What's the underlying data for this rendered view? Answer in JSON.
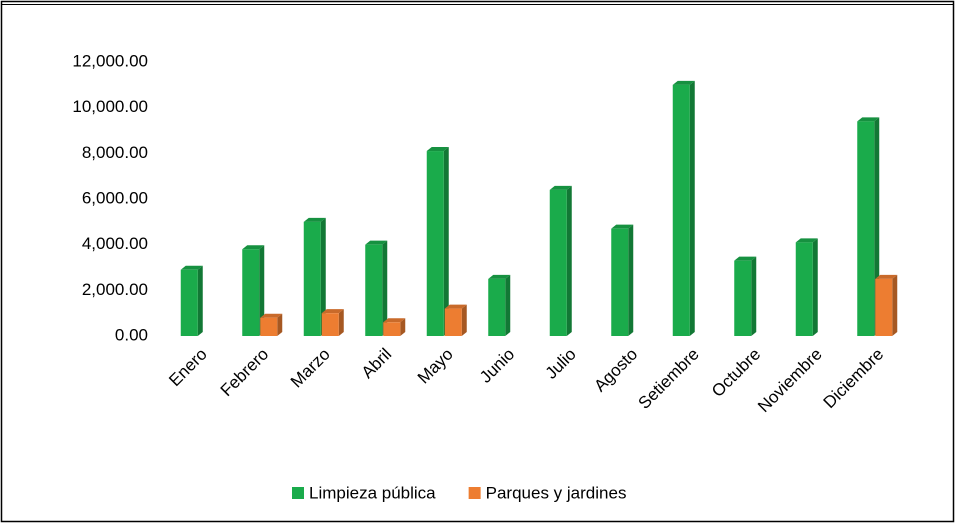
{
  "chart_data": {
    "type": "bar3d",
    "categories": [
      "Enero",
      "Febrero",
      "Marzo",
      "Abril",
      "Mayo",
      "Junio",
      "Julio",
      "Agosto",
      "Setiembre",
      "Octubre",
      "Noviembre",
      "Diciembre"
    ],
    "series": [
      {
        "name": "Limpieza pública",
        "color": "#1aab4b",
        "values": [
          2900,
          3800,
          5000,
          4000,
          8100,
          2500,
          6400,
          4700,
          11000,
          3300,
          4100,
          9400
        ]
      },
      {
        "name": "Parques y jardines",
        "color": "#ed7d31",
        "values": [
          null,
          800,
          1000,
          600,
          1200,
          null,
          null,
          null,
          null,
          null,
          null,
          2500
        ]
      }
    ],
    "ylim": [
      0,
      12000
    ],
    "yticks": [
      {
        "value": 0,
        "label": "0.00"
      },
      {
        "value": 2000,
        "label": "2,000.00"
      },
      {
        "value": 4000,
        "label": "4,000.00"
      },
      {
        "value": 6000,
        "label": "6,000.00"
      },
      {
        "value": 8000,
        "label": "8,000.00"
      },
      {
        "value": 10000,
        "label": "10,000.00"
      },
      {
        "value": 12000,
        "label": "12,000.00"
      }
    ],
    "legend": "bottom"
  }
}
